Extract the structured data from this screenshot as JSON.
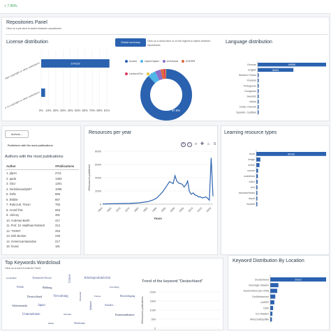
{
  "topbar": {
    "stat": "+ 7.95%"
  },
  "repo_panel": {
    "title": "Repositories Panel",
    "subtitle": "Click on a pie slice to switch between repositories"
  },
  "license": {
    "title": "License distribution",
    "categories": [
      "Under copyright or other restrictions",
      "Under no copyright or other restrictions"
    ],
    "values": [
      104125,
      5962
    ],
    "ticks": [
      "0%",
      "10%",
      "20%",
      "30%",
      "40%",
      "50%",
      "60%",
      "70%",
      "80%",
      "91%"
    ]
  },
  "global_summary": {
    "button": "Global summary",
    "hint": "Click on a donut slice or on the legend to switch between repositories",
    "legend": [
      {
        "name": "econis",
        "color": "#2a62b0"
      },
      {
        "name": "OpenClipArt",
        "color": "#4fb7e8"
      },
      {
        "name": "UniVersal",
        "color": "#8d6fc9"
      },
      {
        "name": "ZOERR",
        "color": "#e2683a"
      },
      {
        "name": "Lecture2Go",
        "color": "#d63a5c"
      },
      {
        "name": "HOOU",
        "color": "#e8c23a"
      }
    ],
    "donut_label": "87.8%",
    "donut_value": 87.8
  },
  "language": {
    "title": "Language distribution",
    "items": [
      "German",
      "English",
      "Western Frisian",
      "Russian",
      "Portuguese",
      "Hungarian",
      "Swedish",
      "Italian",
      "Dutch, Flemish",
      "Spanish, Castilian"
    ],
    "values": [
      69896,
      36481,
      900,
      600,
      500,
      400,
      350,
      300,
      250,
      200
    ],
    "labels": [
      "69896",
      "36481"
    ]
  },
  "authors_btn": "Authors...",
  "publishers_caption": "Publishers with the most publications",
  "authors": {
    "title": "Authors with the most publications",
    "col_author": "Author",
    "col_pubs": "#Publications",
    "rows": [
      [
        "1. jdp4n",
        "2711"
      ],
      [
        "2. ppda",
        "1383"
      ],
      [
        "3. GDJ",
        "1291"
      ],
      [
        "4. NicholasJudy567",
        "1095"
      ],
      [
        "5. hofts",
        "859"
      ],
      [
        "6. llebble",
        "857"
      ],
      [
        "7. Rabczuk, Timon",
        "765"
      ],
      [
        "8. Arsmf.f/16",
        "653"
      ],
      [
        "9. Johnny",
        "491"
      ],
      [
        "10. Andreas Barth",
        "417"
      ],
      [
        "11. Prof. Dr. Matthias Rebisch",
        "313"
      ],
      [
        "12. TIGINT",
        "253"
      ],
      [
        "13. Dirk Becker",
        "246"
      ],
      [
        "14. mmemcarnatandan",
        "217"
      ],
      [
        "15. found",
        "181"
      ]
    ]
  },
  "resources": {
    "title": "Resources per year",
    "ylabel": "#Resources published",
    "xlabel": "Years",
    "yticks": [
      "0",
      "2000",
      "4000",
      "6000",
      "8000"
    ],
    "xticks": [
      "1960",
      "1965",
      "1970",
      "1975",
      "1980",
      "1985",
      "1990",
      "1995",
      "2000",
      "2005",
      "2010",
      "2015",
      "2020"
    ],
    "menu_icons": [
      "zoom-in-icon",
      "zoom-out-icon",
      "search-icon",
      "pan-icon",
      "home-icon",
      "menu-icon"
    ]
  },
  "chart_data": {
    "type": "line",
    "title": "Resources per year",
    "xlabel": "Years",
    "ylabel": "#Resources published",
    "ylim": [
      0,
      8000
    ],
    "x": [
      1960,
      1965,
      1970,
      1975,
      1980,
      1985,
      1988,
      1990,
      1993,
      1995,
      1997,
      1999,
      2000,
      2001,
      2002,
      2003,
      2004,
      2005,
      2006,
      2007,
      2008,
      2009,
      2010,
      2011,
      2012,
      2013,
      2014,
      2015,
      2016,
      2017,
      2018,
      2019,
      2020,
      2021
    ],
    "y": [
      30,
      60,
      90,
      120,
      200,
      380,
      650,
      950,
      1800,
      2600,
      3400,
      3100,
      4300,
      3500,
      3200,
      3100,
      3000,
      2600,
      2900,
      3500,
      1900,
      1500,
      1700,
      1400,
      1300,
      1100,
      1100,
      950,
      1000,
      1100,
      900,
      600,
      7000,
      1200
    ]
  },
  "learning": {
    "title": "Learning resource types",
    "items": [
      "book",
      "image",
      "article",
      "course",
      "undefined",
      "video",
      "text",
      "bachelorthesis",
      "report",
      "booklet"
    ],
    "values": [
      90142,
      5200,
      4100,
      2300,
      2000,
      1700,
      1500,
      1400,
      1200,
      900
    ],
    "labels": [
      "90142"
    ]
  },
  "wordcloud": {
    "title": "Top Keywords Wordcloud",
    "subtitle": "Click on a word to load its Trend",
    "words": [
      "Gesundheit",
      "Technische Forsch",
      "Wetter",
      "Arbeitsproduktivität",
      "Forschung",
      "Politik",
      "Bildung",
      "Umweltschutz",
      "Europa",
      "Beschäftigung",
      "Deutschland",
      "Verwaltung",
      "Wirtschaft",
      "Soziales",
      "Arbeitsmarkt",
      "Japan",
      "Ostasien",
      "Industrie",
      "Kommunikation",
      "Unternehmen",
      "Klima",
      "Wachstum"
    ]
  },
  "trend": {
    "title": "Trend of the keyword \"Deutschland\"",
    "ylabel": "#Resources publications",
    "yticks": [
      "0",
      "500",
      "1000",
      "1500",
      "2000"
    ]
  },
  "location": {
    "title": "Keyword Distribution By Location",
    "items": [
      "Deutschland",
      "Vereinigte Staaten",
      "Deutschland (ab 1945)",
      "Großbritannien",
      "UdSSR",
      "DDR",
      "EU-Staaten",
      "Wirtschaftspolitik"
    ],
    "values": [
      23312,
      3400,
      2900,
      2100,
      1700,
      1200,
      900,
      700
    ],
    "labels": [
      "23312"
    ]
  }
}
